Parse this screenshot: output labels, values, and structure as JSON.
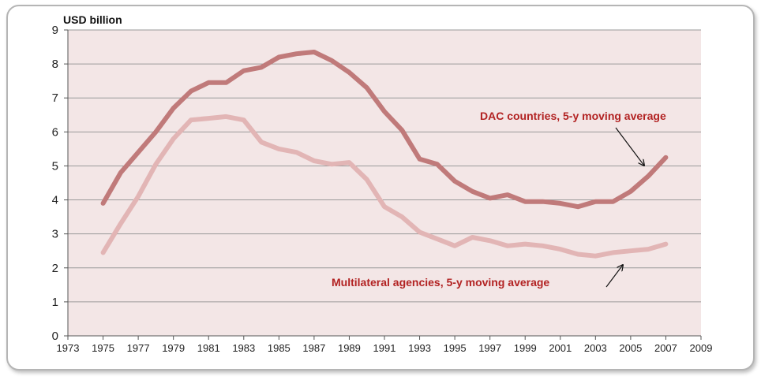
{
  "chart_data": {
    "type": "line",
    "title": "",
    "ylabel": "USD billion",
    "xlabel": "",
    "xlim": [
      1973,
      2009
    ],
    "ylim": [
      0,
      9
    ],
    "x_ticks": [
      "1973",
      "1975",
      "1977",
      "1979",
      "1981",
      "1983",
      "1985",
      "1987",
      "1989",
      "1991",
      "1993",
      "1995",
      "1997",
      "1999",
      "2001",
      "2003",
      "2005",
      "2007",
      "2009"
    ],
    "y_ticks": [
      "0",
      "1",
      "2",
      "3",
      "4",
      "5",
      "6",
      "7",
      "8",
      "9"
    ],
    "grid": true,
    "plot_background": "#f3e6e6",
    "series": [
      {
        "name": "DAC countries, 5-y moving average",
        "color": "#c07a7a",
        "label_color": "#b22222",
        "x": [
          1975,
          1976,
          1977,
          1978,
          1979,
          1980,
          1981,
          1982,
          1983,
          1984,
          1985,
          1986,
          1987,
          1988,
          1989,
          1990,
          1991,
          1992,
          1993,
          1994,
          1995,
          1996,
          1997,
          1998,
          1999,
          2000,
          2001,
          2002,
          2003,
          2004,
          2005,
          2006,
          2007
        ],
        "values": [
          3.9,
          4.8,
          5.4,
          6.0,
          6.7,
          7.2,
          7.45,
          7.45,
          7.8,
          7.9,
          8.2,
          8.3,
          8.35,
          8.1,
          7.75,
          7.3,
          6.6,
          6.05,
          5.2,
          5.05,
          4.55,
          4.25,
          4.05,
          4.15,
          3.95,
          3.95,
          3.9,
          3.8,
          3.95,
          3.95,
          4.25,
          4.7,
          5.25
        ]
      },
      {
        "name": "Multilateral agencies, 5-y moving average",
        "color": "#e2b5b5",
        "label_color": "#b22222",
        "x": [
          1975,
          1976,
          1977,
          1978,
          1979,
          1980,
          1981,
          1982,
          1983,
          1984,
          1985,
          1986,
          1987,
          1988,
          1989,
          1990,
          1991,
          1992,
          1993,
          1994,
          1995,
          1996,
          1997,
          1998,
          1999,
          2000,
          2001,
          2002,
          2003,
          2004,
          2005,
          2006,
          2007
        ],
        "values": [
          2.45,
          3.3,
          4.1,
          5.05,
          5.8,
          6.35,
          6.4,
          6.45,
          6.35,
          5.7,
          5.5,
          5.4,
          5.15,
          5.05,
          5.1,
          4.6,
          3.8,
          3.5,
          3.05,
          2.85,
          2.65,
          2.9,
          2.8,
          2.65,
          2.7,
          2.65,
          2.55,
          2.4,
          2.35,
          2.45,
          2.5,
          2.55,
          2.7
        ]
      }
    ]
  }
}
